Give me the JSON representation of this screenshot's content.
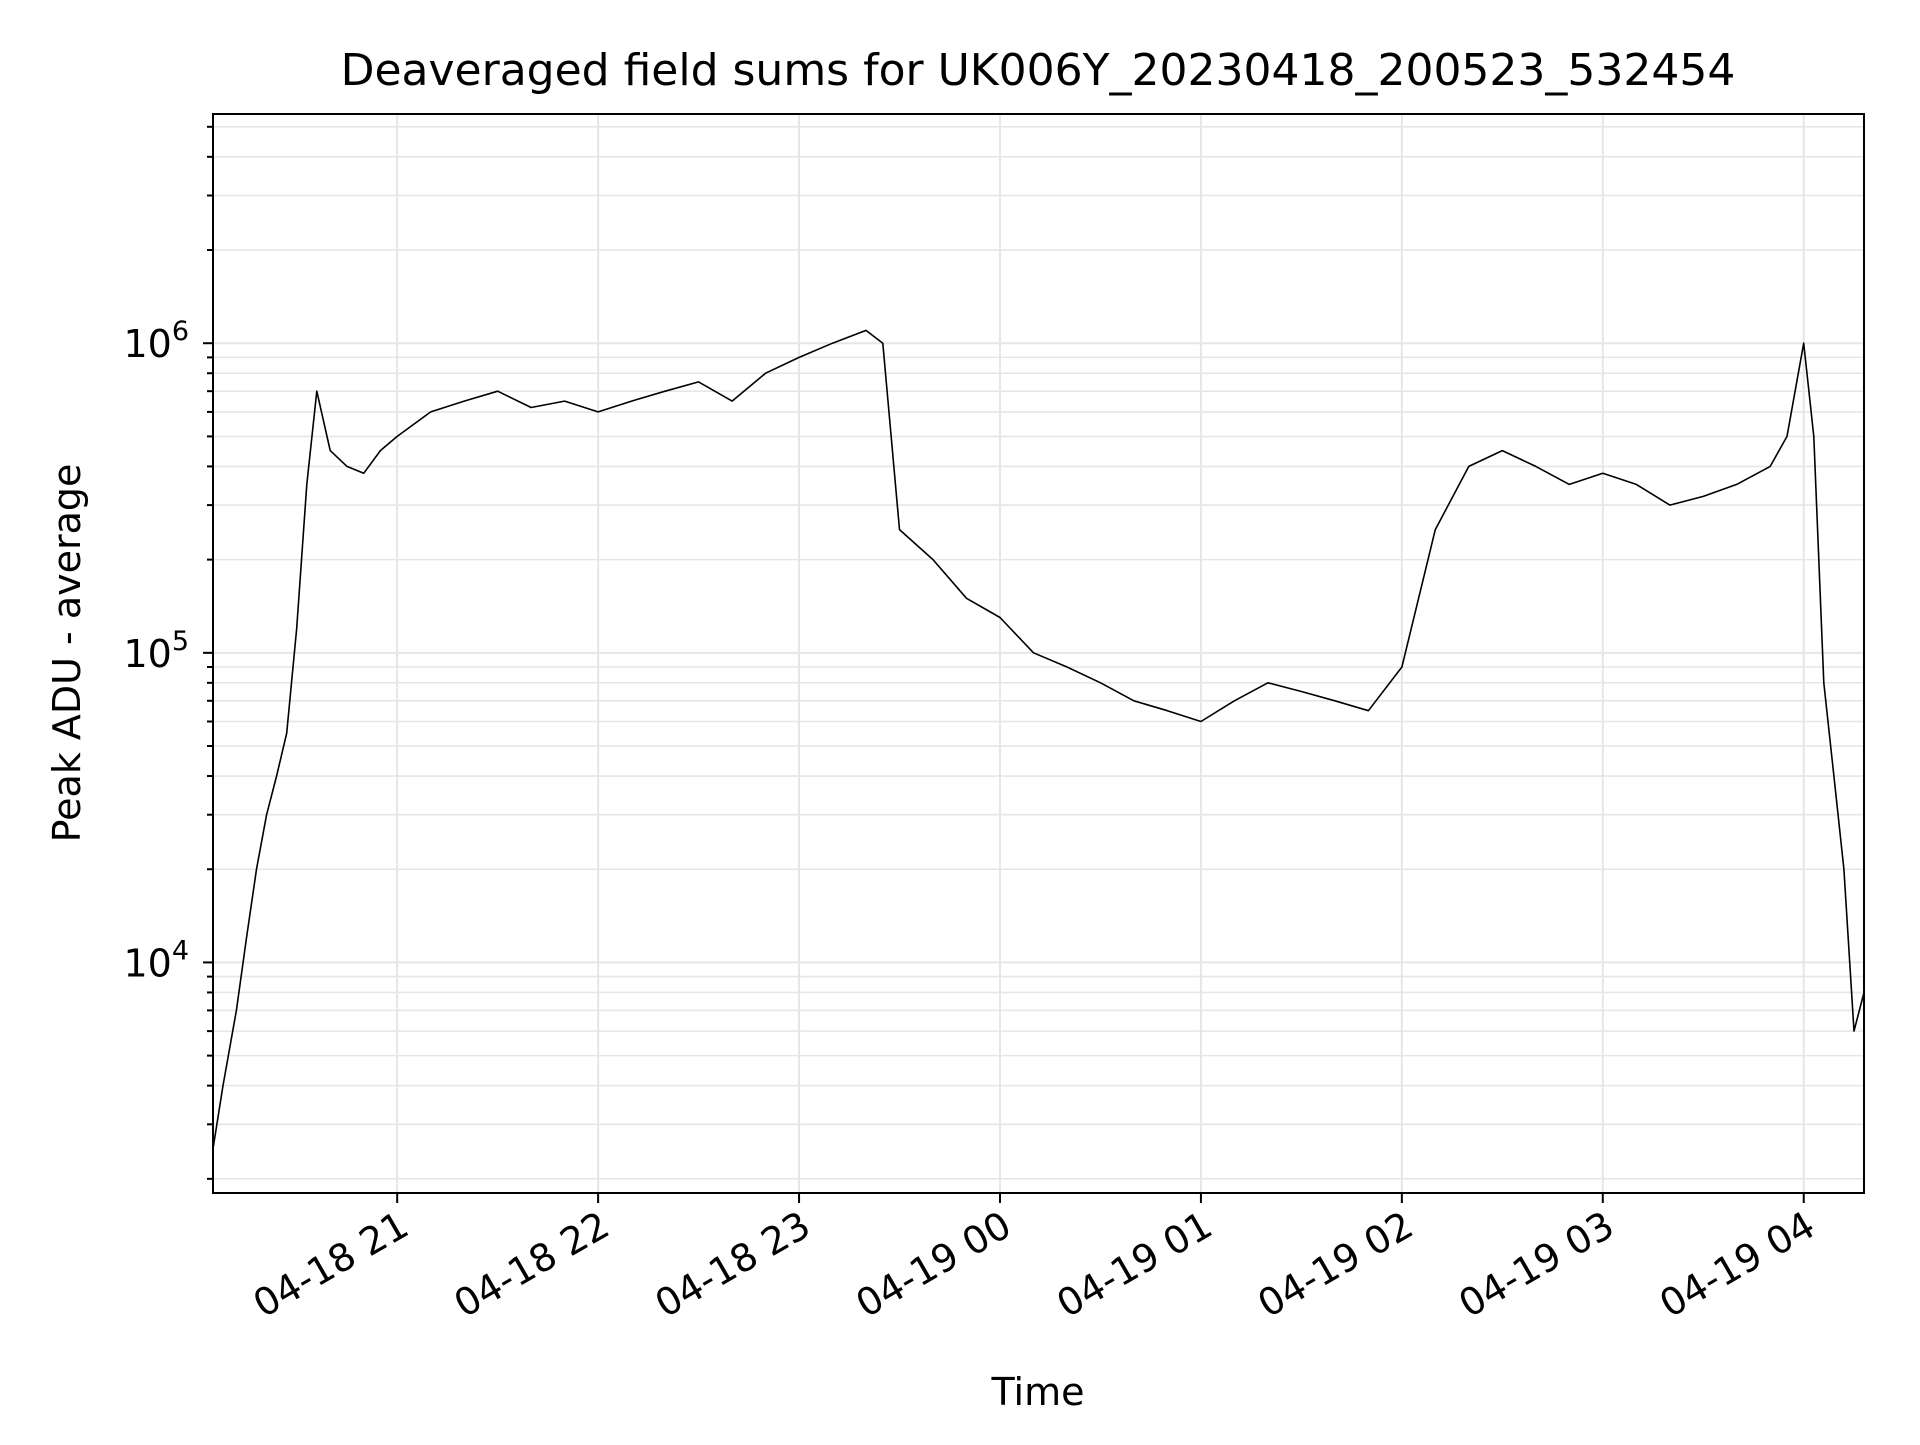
{
  "chart_data": {
    "type": "line",
    "title": "Deaveraged field sums for UK006Y_20230418_200523_532454",
    "xlabel": "Time",
    "ylabel": "Peak ADU - average",
    "yscale": "log",
    "ylim": [
      1800,
      5500000
    ],
    "xlim": [
      "2023-04-18 20:05",
      "2023-04-19 04:18"
    ],
    "grid": true,
    "line_color": "#000000",
    "grid_color": "#e6e6e6",
    "x_ticks": [
      {
        "value": "2023-04-18 21:00",
        "label": "04-18 21"
      },
      {
        "value": "2023-04-18 22:00",
        "label": "04-18 22"
      },
      {
        "value": "2023-04-18 23:00",
        "label": "04-18 23"
      },
      {
        "value": "2023-04-19 00:00",
        "label": "04-19 00"
      },
      {
        "value": "2023-04-19 01:00",
        "label": "04-19 01"
      },
      {
        "value": "2023-04-19 02:00",
        "label": "04-19 02"
      },
      {
        "value": "2023-04-19 03:00",
        "label": "04-19 03"
      },
      {
        "value": "2023-04-19 04:00",
        "label": "04-19 04"
      }
    ],
    "y_ticks": [
      {
        "value": 10000,
        "base": "10",
        "exp": "4"
      },
      {
        "value": 100000,
        "base": "10",
        "exp": "5"
      },
      {
        "value": 1000000,
        "base": "10",
        "exp": "6"
      }
    ],
    "series": [
      {
        "x": [
          "2023-04-18 20:05",
          "2023-04-18 20:08",
          "2023-04-18 20:12",
          "2023-04-18 20:15",
          "2023-04-18 20:18",
          "2023-04-18 20:21",
          "2023-04-18 20:24",
          "2023-04-18 20:27",
          "2023-04-18 20:30",
          "2023-04-18 20:33",
          "2023-04-18 20:36",
          "2023-04-18 20:40",
          "2023-04-18 20:45",
          "2023-04-18 20:50",
          "2023-04-18 20:55",
          "2023-04-18 21:00",
          "2023-04-18 21:10",
          "2023-04-18 21:20",
          "2023-04-18 21:30",
          "2023-04-18 21:40",
          "2023-04-18 21:50",
          "2023-04-18 22:00",
          "2023-04-18 22:10",
          "2023-04-18 22:20",
          "2023-04-18 22:30",
          "2023-04-18 22:40",
          "2023-04-18 22:50",
          "2023-04-18 23:00",
          "2023-04-18 23:10",
          "2023-04-18 23:20",
          "2023-04-18 23:25",
          "2023-04-18 23:30",
          "2023-04-18 23:40",
          "2023-04-18 23:50",
          "2023-04-19 00:00",
          "2023-04-19 00:10",
          "2023-04-19 00:20",
          "2023-04-19 00:30",
          "2023-04-19 00:40",
          "2023-04-19 00:50",
          "2023-04-19 01:00",
          "2023-04-19 01:10",
          "2023-04-19 01:20",
          "2023-04-19 01:30",
          "2023-04-19 01:40",
          "2023-04-19 01:50",
          "2023-04-19 02:00",
          "2023-04-19 02:10",
          "2023-04-19 02:20",
          "2023-04-19 02:30",
          "2023-04-19 02:40",
          "2023-04-19 02:50",
          "2023-04-19 03:00",
          "2023-04-19 03:10",
          "2023-04-19 03:20",
          "2023-04-19 03:30",
          "2023-04-19 03:40",
          "2023-04-19 03:50",
          "2023-04-19 03:55",
          "2023-04-19 04:00",
          "2023-04-19 04:03",
          "2023-04-19 04:06",
          "2023-04-19 04:09",
          "2023-04-19 04:12",
          "2023-04-19 04:15",
          "2023-04-19 04:18"
        ],
        "y": [
          2500,
          4000,
          7000,
          12000,
          20000,
          30000,
          40000,
          55000,
          120000,
          350000,
          700000,
          450000,
          400000,
          380000,
          450000,
          500000,
          600000,
          650000,
          700000,
          620000,
          650000,
          600000,
          650000,
          700000,
          750000,
          650000,
          800000,
          900000,
          1000000,
          1100000,
          1000000,
          250000,
          200000,
          150000,
          130000,
          100000,
          90000,
          80000,
          70000,
          65000,
          60000,
          70000,
          80000,
          75000,
          70000,
          65000,
          90000,
          250000,
          400000,
          450000,
          400000,
          350000,
          380000,
          350000,
          300000,
          320000,
          350000,
          400000,
          500000,
          1000000,
          500000,
          80000,
          40000,
          20000,
          6000,
          8000
        ]
      }
    ]
  }
}
